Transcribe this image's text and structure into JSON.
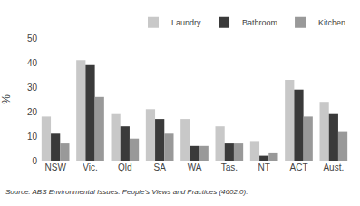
{
  "chart_data": {
    "type": "bar",
    "categories": [
      "NSW",
      "Vic.",
      "Qld",
      "SA",
      "WA",
      "Tas.",
      "NT",
      "ACT",
      "Aust."
    ],
    "series": [
      {
        "name": "Laundry",
        "color": "#c8c8c8",
        "values": [
          18,
          41,
          19,
          21,
          17,
          14,
          8,
          33,
          24
        ]
      },
      {
        "name": "Bathroom",
        "color": "#3a3a3a",
        "values": [
          11,
          39,
          14,
          17,
          6,
          7,
          2,
          29,
          19
        ]
      },
      {
        "name": "Kitchen",
        "color": "#999999",
        "values": [
          7,
          26,
          9,
          11,
          6,
          7,
          3,
          18,
          12
        ]
      }
    ],
    "y_label": "%",
    "ylim": [
      0,
      50
    ],
    "yticks": [
      0,
      10,
      20,
      30,
      40,
      50
    ],
    "grid": false,
    "legend": "upper right",
    "annotations": [
      "Source: ABS Environmental Issues: People's Views and Practices (4602.0)."
    ]
  }
}
